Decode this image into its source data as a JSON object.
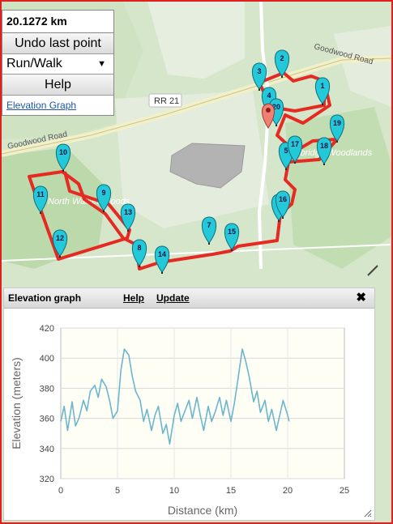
{
  "controls": {
    "distance": "20.1272 km",
    "undo_label": "Undo last point",
    "mode_value": "Run/Walk",
    "help_label": "Help",
    "elevation_link": "Elevation Graph"
  },
  "map": {
    "road_labels": [
      "Goodwood Road",
      "Goodwood Road",
      "RR 21"
    ],
    "place_labels": [
      "North Walker Woods",
      "Uxbridge Woodlands"
    ],
    "markers": [
      "1",
      "2",
      "3",
      "4",
      "5",
      "6",
      "7",
      "8",
      "9",
      "10",
      "11",
      "12",
      "13",
      "14",
      "15",
      "16",
      "17",
      "18",
      "19",
      "20"
    ],
    "route_color": "#e52a22",
    "marker_color": "#23c8d9"
  },
  "panel": {
    "title": "Elevation graph",
    "help_link": "Help",
    "update_link": "Update",
    "close_icon": "close-icon"
  },
  "chart_data": {
    "type": "line",
    "xlabel": "Distance (km)",
    "ylabel": "Elevation (meters)",
    "xlim": [
      0,
      25
    ],
    "ylim": [
      320,
      420
    ],
    "xticks": [
      0,
      5,
      10,
      15,
      20,
      25
    ],
    "yticks": [
      320,
      340,
      360,
      380,
      400,
      420
    ],
    "grid": true,
    "series": [
      {
        "color": "#6ab6cf",
        "x": [
          0,
          0.3,
          0.6,
          1,
          1.3,
          1.6,
          2,
          2.3,
          2.6,
          3,
          3.3,
          3.6,
          4,
          4.3,
          4.6,
          5,
          5.3,
          5.6,
          6,
          6.3,
          6.6,
          7,
          7.3,
          7.6,
          8,
          8.3,
          8.6,
          9,
          9.3,
          9.6,
          10,
          10.3,
          10.6,
          11,
          11.3,
          11.6,
          12,
          12.3,
          12.6,
          13,
          13.3,
          13.6,
          14,
          14.3,
          14.6,
          15,
          15.3,
          15.6,
          16,
          16.3,
          16.6,
          17,
          17.3,
          17.6,
          18,
          18.3,
          18.6,
          19,
          19.3,
          19.6,
          20,
          20.13
        ],
        "y": [
          358,
          368,
          352,
          371,
          355,
          360,
          372,
          365,
          378,
          382,
          374,
          386,
          381,
          372,
          360,
          365,
          392,
          406,
          402,
          388,
          378,
          372,
          358,
          366,
          352,
          362,
          368,
          350,
          356,
          343,
          362,
          370,
          358,
          366,
          372,
          360,
          374,
          362,
          352,
          368,
          358,
          364,
          374,
          362,
          372,
          358,
          370,
          385,
          406,
          398,
          388,
          371,
          378,
          364,
          372,
          358,
          366,
          352,
          362,
          372,
          362,
          358
        ]
      }
    ]
  }
}
